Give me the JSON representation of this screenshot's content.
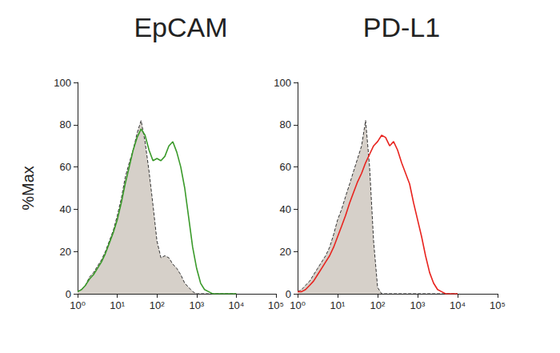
{
  "chart_data": [
    {
      "type": "line",
      "title": "EpCAM",
      "ylabel": "%Max",
      "x": [
        1,
        1.26,
        1.58,
        2,
        2.51,
        3.16,
        3.98,
        5.01,
        6.31,
        7.94,
        10,
        12.6,
        15.8,
        20,
        25.1,
        31.6,
        39.8,
        50.1,
        63.1,
        79.4,
        100,
        126,
        158,
        200,
        251,
        316,
        398,
        501,
        631,
        794,
        1000,
        1260,
        1580,
        2000,
        2510,
        3160,
        3980,
        5010,
        6310,
        7940,
        10000
      ],
      "log": "x",
      "grid": false,
      "xlim": [
        1,
        100000
      ],
      "xticks": [
        {
          "value": 1,
          "label": "10⁰"
        },
        {
          "value": 10,
          "label": "10¹"
        },
        {
          "value": 100,
          "label": "10²"
        },
        {
          "value": 1000,
          "label": "10³"
        },
        {
          "value": 10000,
          "label": "10⁴"
        },
        {
          "value": 100000,
          "label": "10⁵"
        }
      ],
      "ylim": [
        0,
        100
      ],
      "yticks": [
        0,
        20,
        40,
        60,
        80,
        100
      ],
      "series": [
        {
          "type": "area",
          "color": "#d6d0c9",
          "line_style": "dashed",
          "values": [
            1,
            2,
            4,
            8,
            10,
            13,
            16,
            20,
            25,
            30,
            37,
            45,
            55,
            62,
            68,
            76,
            82,
            72,
            58,
            42,
            25,
            17,
            18,
            17,
            14,
            12,
            9,
            5,
            3,
            1,
            0,
            0,
            0,
            0,
            0,
            0,
            0,
            0,
            0,
            0,
            0
          ]
        },
        {
          "type": "line",
          "color": "#3a9a2a",
          "line_style": "solid",
          "values": [
            1,
            2,
            4,
            7,
            9,
            12,
            15,
            19,
            24,
            29,
            35,
            43,
            52,
            60,
            68,
            74,
            78,
            75,
            68,
            63,
            64,
            63,
            65,
            70,
            72,
            67,
            60,
            50,
            36,
            22,
            12,
            5,
            2,
            1,
            0,
            0,
            0,
            0,
            0,
            0,
            0
          ]
        }
      ]
    },
    {
      "type": "line",
      "title": "PD-L1",
      "x": [
        1,
        1.26,
        1.58,
        2,
        2.51,
        3.16,
        3.98,
        5.01,
        6.31,
        7.94,
        10,
        12.6,
        15.8,
        20,
        25.1,
        31.6,
        39.8,
        50.1,
        63.1,
        79.4,
        100,
        126,
        158,
        200,
        251,
        316,
        398,
        501,
        631,
        794,
        1000,
        1260,
        1580,
        2000,
        2510,
        3160,
        3980,
        5010,
        6310,
        7940,
        10000
      ],
      "log": "x",
      "grid": false,
      "xlim": [
        1,
        100000
      ],
      "xticks": [
        {
          "value": 1,
          "label": "10⁰"
        },
        {
          "value": 10,
          "label": "10¹"
        },
        {
          "value": 100,
          "label": "10²"
        },
        {
          "value": 1000,
          "label": "10³"
        },
        {
          "value": 10000,
          "label": "10⁴"
        },
        {
          "value": 100000,
          "label": "10⁵"
        }
      ],
      "ylim": [
        0,
        100
      ],
      "yticks": [
        0,
        20,
        40,
        60,
        80,
        100
      ],
      "series": [
        {
          "type": "area",
          "color": "#d6d0c9",
          "line_style": "dashed",
          "values": [
            1,
            2,
            4,
            6,
            9,
            12,
            15,
            18,
            22,
            28,
            35,
            40,
            46,
            52,
            58,
            64,
            70,
            82,
            60,
            25,
            3,
            0,
            0,
            0,
            0,
            0,
            0,
            0,
            0,
            0,
            0,
            0,
            0,
            0,
            0,
            0,
            0,
            0,
            0,
            0,
            0
          ]
        },
        {
          "type": "line",
          "color": "#e8231e",
          "line_style": "solid",
          "values": [
            1,
            1,
            2,
            4,
            6,
            9,
            12,
            15,
            18,
            22,
            27,
            32,
            37,
            43,
            48,
            53,
            57,
            62,
            66,
            70,
            72,
            75,
            74,
            70,
            72,
            68,
            62,
            57,
            52,
            43,
            35,
            27,
            18,
            10,
            5,
            2,
            1,
            0,
            0,
            0,
            0
          ]
        }
      ]
    }
  ]
}
